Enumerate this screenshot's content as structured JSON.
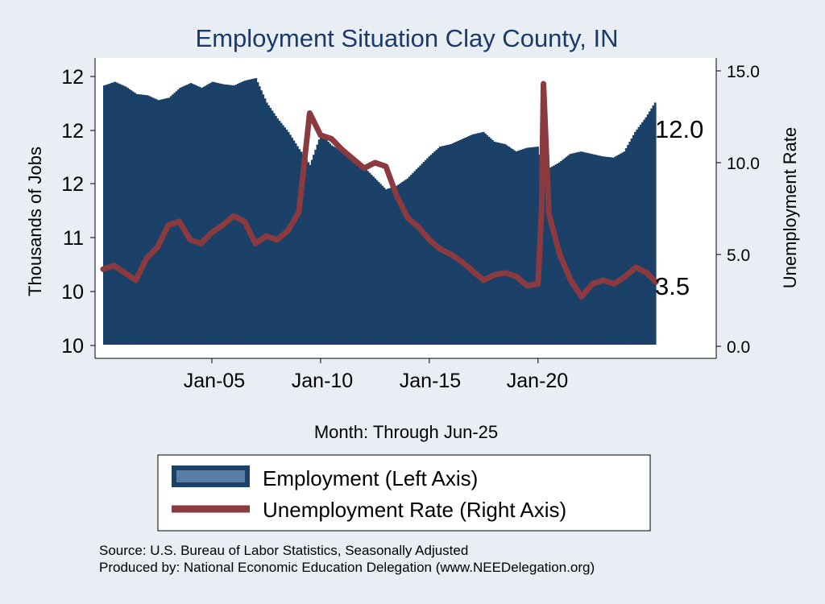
{
  "chart_data": {
    "type": "bar",
    "title": "Employment Situation Clay  County, IN",
    "xlabel": "Month: Through Jun-25",
    "ylabel_left": "Thousands of Jobs",
    "ylabel_right": "Unemployment Rate",
    "x_ticks": [
      "Jan-05",
      "Jan-10",
      "Jan-15",
      "Jan-20"
    ],
    "y_left_ticks": [
      "12",
      "12",
      "12",
      "11",
      "10",
      "10"
    ],
    "y_right_ticks": [
      "15.0",
      "10.0",
      "5.0",
      "0.0"
    ],
    "y_right_lim": [
      0,
      15
    ],
    "legend_position": "bottom",
    "grid": false,
    "series": [
      {
        "name": "Employment (Left Axis)",
        "type": "bar",
        "axis": "left",
        "color": "#1b4168",
        "points": [
          [
            "2000-01",
            12.12
          ],
          [
            "2000-07",
            12.15
          ],
          [
            "2001-01",
            12.11
          ],
          [
            "2001-07",
            12.05
          ],
          [
            "2002-01",
            12.04
          ],
          [
            "2002-07",
            12.0
          ],
          [
            "2003-01",
            12.02
          ],
          [
            "2003-07",
            12.1
          ],
          [
            "2004-01",
            12.14
          ],
          [
            "2004-07",
            12.1
          ],
          [
            "2005-01",
            12.15
          ],
          [
            "2005-07",
            12.13
          ],
          [
            "2006-01",
            12.12
          ],
          [
            "2006-07",
            12.16
          ],
          [
            "2007-01",
            12.18
          ],
          [
            "2007-07",
            11.98
          ],
          [
            "2008-01",
            11.85
          ],
          [
            "2008-07",
            11.74
          ],
          [
            "2009-01",
            11.6
          ],
          [
            "2009-07",
            11.47
          ],
          [
            "2010-01",
            11.72
          ],
          [
            "2010-07",
            11.63
          ],
          [
            "2011-01",
            11.58
          ],
          [
            "2011-07",
            11.52
          ],
          [
            "2012-01",
            11.45
          ],
          [
            "2012-07",
            11.36
          ],
          [
            "2013-01",
            11.27
          ],
          [
            "2013-07",
            11.3
          ],
          [
            "2014-01",
            11.36
          ],
          [
            "2014-07",
            11.45
          ],
          [
            "2015-01",
            11.54
          ],
          [
            "2015-07",
            11.62
          ],
          [
            "2016-01",
            11.64
          ],
          [
            "2016-07",
            11.68
          ],
          [
            "2017-01",
            11.72
          ],
          [
            "2017-07",
            11.74
          ],
          [
            "2018-01",
            11.66
          ],
          [
            "2018-07",
            11.64
          ],
          [
            "2019-01",
            11.58
          ],
          [
            "2019-07",
            11.61
          ],
          [
            "2020-01",
            11.62
          ],
          [
            "2020-04",
            11.42
          ],
          [
            "2020-07",
            11.44
          ],
          [
            "2021-01",
            11.49
          ],
          [
            "2021-07",
            11.56
          ],
          [
            "2022-01",
            11.58
          ],
          [
            "2022-07",
            11.56
          ],
          [
            "2023-01",
            11.54
          ],
          [
            "2023-07",
            11.53
          ],
          [
            "2024-01",
            11.58
          ],
          [
            "2024-07",
            11.74
          ],
          [
            "2025-01",
            11.86
          ],
          [
            "2025-06",
            11.98
          ]
        ],
        "end_label": "12.0"
      },
      {
        "name": "Unemployment Rate (Right Axis)",
        "type": "line",
        "axis": "right",
        "color": "#8b3a40",
        "points": [
          [
            "2000-01",
            4.2
          ],
          [
            "2000-07",
            4.4
          ],
          [
            "2001-01",
            4.0
          ],
          [
            "2001-07",
            3.6
          ],
          [
            "2002-01",
            4.8
          ],
          [
            "2002-07",
            5.4
          ],
          [
            "2003-01",
            6.6
          ],
          [
            "2003-07",
            6.8
          ],
          [
            "2004-01",
            5.8
          ],
          [
            "2004-07",
            5.6
          ],
          [
            "2005-01",
            6.2
          ],
          [
            "2005-07",
            6.6
          ],
          [
            "2006-01",
            7.1
          ],
          [
            "2006-07",
            6.8
          ],
          [
            "2007-01",
            5.6
          ],
          [
            "2007-07",
            6.0
          ],
          [
            "2008-01",
            5.8
          ],
          [
            "2008-07",
            6.3
          ],
          [
            "2009-01",
            7.3
          ],
          [
            "2009-07",
            12.7
          ],
          [
            "2010-01",
            11.5
          ],
          [
            "2010-07",
            11.3
          ],
          [
            "2011-01",
            10.7
          ],
          [
            "2011-07",
            10.2
          ],
          [
            "2012-01",
            9.7
          ],
          [
            "2012-07",
            10.0
          ],
          [
            "2013-01",
            9.8
          ],
          [
            "2013-07",
            8.2
          ],
          [
            "2014-01",
            7.0
          ],
          [
            "2014-07",
            6.5
          ],
          [
            "2015-01",
            5.8
          ],
          [
            "2015-07",
            5.3
          ],
          [
            "2016-01",
            5.0
          ],
          [
            "2016-07",
            4.6
          ],
          [
            "2017-01",
            4.1
          ],
          [
            "2017-07",
            3.6
          ],
          [
            "2018-01",
            3.9
          ],
          [
            "2018-07",
            4.0
          ],
          [
            "2019-01",
            3.8
          ],
          [
            "2019-07",
            3.3
          ],
          [
            "2020-01",
            3.4
          ],
          [
            "2020-03",
            7.5
          ],
          [
            "2020-04",
            14.3
          ],
          [
            "2020-07",
            7.2
          ],
          [
            "2021-01",
            5.0
          ],
          [
            "2021-07",
            3.6
          ],
          [
            "2022-01",
            2.7
          ],
          [
            "2022-07",
            3.4
          ],
          [
            "2023-01",
            3.6
          ],
          [
            "2023-07",
            3.4
          ],
          [
            "2024-01",
            3.8
          ],
          [
            "2024-07",
            4.3
          ],
          [
            "2025-01",
            4.0
          ],
          [
            "2025-06",
            3.5
          ]
        ],
        "end_label": "3.5"
      }
    ]
  },
  "source_lines": [
    "Source: U.S. Bureau of Labor Statistics, Seasonally Adjusted",
    "Produced by: National Economic Education Delegation (www.NEEDelegation.org)"
  ]
}
